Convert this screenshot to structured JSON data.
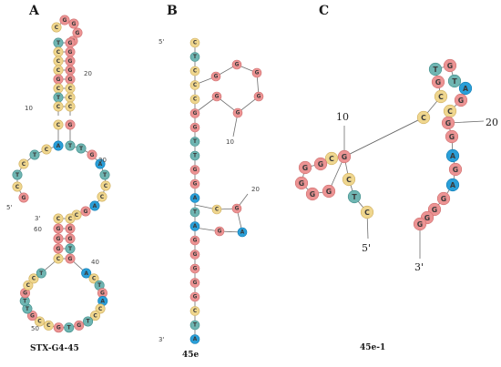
{
  "colors": {
    "G": "#ec9393",
    "C": "#efd68e",
    "T": "#6fb5b2",
    "A": "#2a9fd8",
    "ring_G": "#cf6f6f",
    "ring_C": "#cfae5e",
    "ring_T": "#3f8d8a",
    "ring_A": "#0f7bb3",
    "bond": "#6e6e6e"
  },
  "panels": [
    {
      "key": "A",
      "letter": "A",
      "caption": "STX-G4-45"
    },
    {
      "key": "B",
      "letter": "B",
      "caption": "45e"
    },
    {
      "key": "C",
      "letter": "C",
      "caption": "45e-1"
    }
  ],
  "panel_A": {
    "numbers": [
      "20",
      "10",
      "30",
      "60",
      "40",
      "50"
    ],
    "ends": [
      "5'",
      "3'"
    ],
    "top_hairpin_loop": [
      "C",
      "G",
      "G",
      "G",
      "G"
    ],
    "stem_1": [
      [
        "T",
        "G"
      ],
      [
        "C",
        "G"
      ],
      [
        "C",
        "G"
      ],
      [
        "C",
        "G"
      ],
      [
        "G",
        "G"
      ],
      [
        "C",
        "C"
      ],
      [
        "T",
        "C"
      ],
      [
        "C",
        "C"
      ]
    ],
    "stem_1_close": [
      "C",
      "G"
    ],
    "stem_1_base": [
      "A",
      "T"
    ],
    "internal_loop_left": [
      "C",
      "T",
      "C",
      "T",
      "C",
      "G"
    ],
    "internal_loop_right": [
      "T",
      "G",
      "A",
      "T",
      "C",
      "C",
      "A",
      "G",
      "C"
    ],
    "stem_2": [
      [
        "C",
        "C"
      ],
      [
        "G",
        "G"
      ],
      [
        "G",
        "G"
      ],
      [
        "G",
        "T"
      ],
      [
        "C",
        "G"
      ]
    ],
    "bottom_loop": [
      "A",
      "C",
      "T",
      "G",
      "A",
      "C",
      "C",
      "T",
      "G",
      "T",
      "G",
      "C",
      "C",
      "G",
      "T",
      "T",
      "G",
      "C",
      "C",
      "T"
    ]
  },
  "panel_B": {
    "numbers": [
      "10",
      "20"
    ],
    "ends": [
      "5'",
      "3'"
    ],
    "backbone": [
      "C",
      "T",
      "C",
      "C",
      "C",
      "G",
      "G",
      "T",
      "T",
      "G",
      "G",
      "A",
      "T",
      "A",
      "G",
      "G",
      "G",
      "G",
      "G",
      "C",
      "T",
      "A"
    ],
    "upper_loop": [
      "G",
      "G",
      "G",
      "G",
      "G",
      "G"
    ],
    "lower_loop": [
      "G",
      "A",
      "G"
    ]
  },
  "panel_C": {
    "numbers": [
      "10",
      "20"
    ],
    "ends": [
      "5'",
      "3'"
    ],
    "hairpin_top": [
      "T",
      "G",
      "T",
      "A",
      "G",
      "C"
    ],
    "hairpin_stem": [
      [
        "G",
        "C"
      ],
      [
        "C",
        "G"
      ]
    ],
    "strand_3prime": [
      "A",
      "G",
      "A",
      "G",
      "G",
      "G",
      "G"
    ],
    "left_ring": [
      "G",
      "C",
      "G",
      "G",
      "G",
      "G",
      "G"
    ],
    "tail_5prime": [
      "C",
      "T",
      "C"
    ]
  }
}
